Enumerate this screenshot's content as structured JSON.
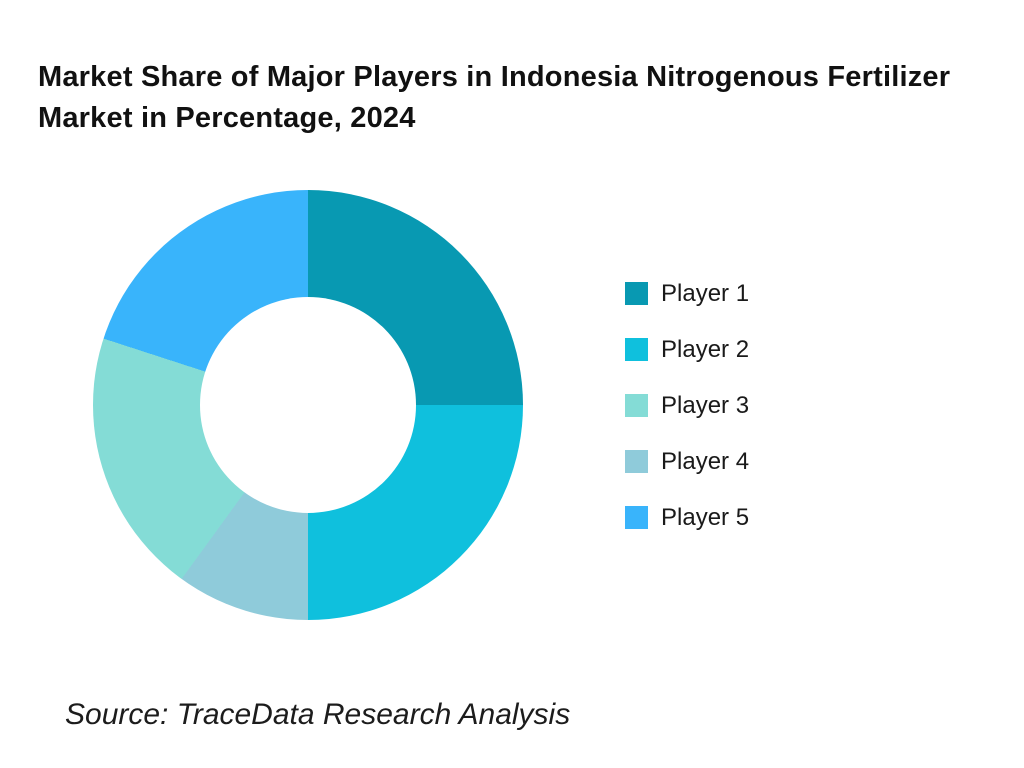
{
  "title": {
    "text": "Market Share of Major Players in Indonesia Nitrogenous Fertilizer Market in Percentage, 2024"
  },
  "source": {
    "text": "Source: TraceData Research Analysis"
  },
  "chart_data": {
    "type": "pie",
    "subtype": "donut",
    "title": "Market Share of Major Players in Indonesia Nitrogenous Fertilizer Market in Percentage, 2024",
    "unit": "percent",
    "categories": [
      "Player 1",
      "Player 2",
      "Player 3",
      "Player 4",
      "Player 5"
    ],
    "values": [
      25,
      25,
      20,
      10,
      20
    ],
    "colors": [
      "#0899b2",
      "#0fc0dd",
      "#84dcd6",
      "#8fcbda",
      "#39b4fb"
    ],
    "legend_position": "right",
    "grid": false,
    "donut_hole_ratio": 0.5,
    "start_angle_deg": 0,
    "direction": "clockwise",
    "display_order": [
      {
        "label": "Player 1",
        "value": 25,
        "color": "#0899b2"
      },
      {
        "label": "Player 2",
        "value": 25,
        "color": "#0fc0dd"
      },
      {
        "label": "Player 4",
        "value": 10,
        "color": "#8fcbda"
      },
      {
        "label": "Player 3",
        "value": 20,
        "color": "#84dcd6"
      },
      {
        "label": "Player 5",
        "value": 20,
        "color": "#39b4fb"
      }
    ],
    "legend": [
      {
        "label": "Player 1",
        "color": "#0899b2"
      },
      {
        "label": "Player 2",
        "color": "#0fc0dd"
      },
      {
        "label": "Player 3",
        "color": "#84dcd6"
      },
      {
        "label": "Player 4",
        "color": "#8fcbda"
      },
      {
        "label": "Player 5",
        "color": "#39b4fb"
      }
    ]
  }
}
